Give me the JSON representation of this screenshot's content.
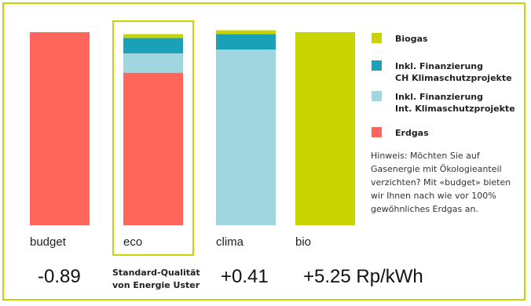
{
  "chart_data": {
    "type": "bar",
    "stacked": true,
    "ylim": [
      0,
      100
    ],
    "categories": [
      "budget",
      "eco",
      "clima",
      "bio"
    ],
    "highlight_category": "eco",
    "series": [
      {
        "key": "erdgas",
        "name": "Erdgas",
        "color": "#ff655a",
        "values": [
          100,
          79,
          0,
          0
        ]
      },
      {
        "key": "int",
        "name": "Inkl. Finanzierung\nInt. Klimaschutzprojekte",
        "color": "#9fd6df",
        "values": [
          0,
          10,
          91,
          0
        ]
      },
      {
        "key": "ch",
        "name": "Inkl. Finanzierung\nCH Klimaschutzprojekte",
        "color": "#1aa1b8",
        "values": [
          0,
          8,
          8,
          0
        ]
      },
      {
        "key": "biogas",
        "name": "Biogas",
        "color": "#c8d400",
        "values": [
          0,
          2,
          2,
          100
        ]
      }
    ],
    "legend_order": [
      "biogas",
      "ch",
      "int",
      "erdgas"
    ],
    "legend_position": "right",
    "price_labels": [
      "-0.89",
      "Standard-Qualität\nvon Energie Uster",
      "+0.41",
      "+5.25 Rp/kWh"
    ],
    "hint": "Hinweis: Möchten Sie auf\nGasenergie mit Ökologieanteil\nverzichten? Mit «budget» bieten\nwir Ihnen nach wie vor 100%\ngewöhnliches Erdgas an."
  },
  "colors": {
    "accent": "#c8d400"
  }
}
